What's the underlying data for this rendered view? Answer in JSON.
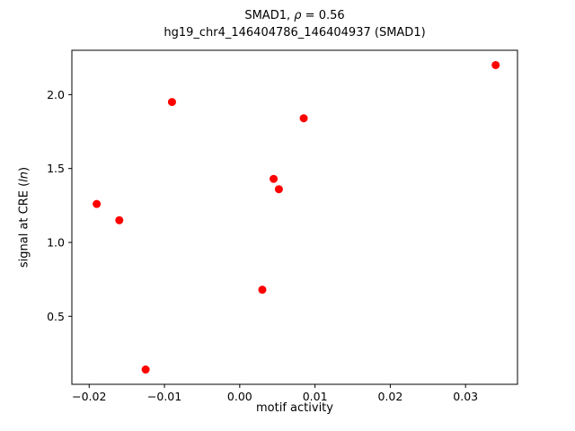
{
  "chart_data": {
    "type": "scatter",
    "title": {
      "line1_prefix": "SMAD1, ",
      "line1_rho": "ρ",
      "line1_rest": " = 0.56",
      "line2": "hg19_chr4_146404786_146404937 (SMAD1)"
    },
    "xlabel": "motif activity",
    "ylabel_prefix": "signal at CRE (",
    "ylabel_math": "ln",
    "ylabel_suffix": ")",
    "marker_color": "#ff0000",
    "axis_color": "#000000",
    "background_color": "#ffffff",
    "grid": false,
    "legend": null,
    "points": [
      [
        -0.019,
        1.26
      ],
      [
        -0.016,
        1.15
      ],
      [
        -0.0125,
        0.14
      ],
      [
        -0.009,
        1.95
      ],
      [
        0.003,
        0.68
      ],
      [
        0.0045,
        1.43
      ],
      [
        0.0052,
        1.36
      ],
      [
        0.0085,
        1.84
      ],
      [
        0.034,
        2.2
      ]
    ],
    "xlim": [
      -0.0223,
      0.0369
    ],
    "ylim": [
      0.04,
      2.3
    ],
    "xticks": {
      "values": [
        -0.02,
        -0.01,
        0.0,
        0.01,
        0.02,
        0.03
      ],
      "labels": [
        "−0.02",
        "−0.01",
        "0.00",
        "0.01",
        "0.02",
        "0.03"
      ]
    },
    "yticks": {
      "values": [
        0.5,
        1.0,
        1.5,
        2.0
      ],
      "labels": [
        "0.5",
        "1.0",
        "1.5",
        "2.0"
      ]
    }
  }
}
